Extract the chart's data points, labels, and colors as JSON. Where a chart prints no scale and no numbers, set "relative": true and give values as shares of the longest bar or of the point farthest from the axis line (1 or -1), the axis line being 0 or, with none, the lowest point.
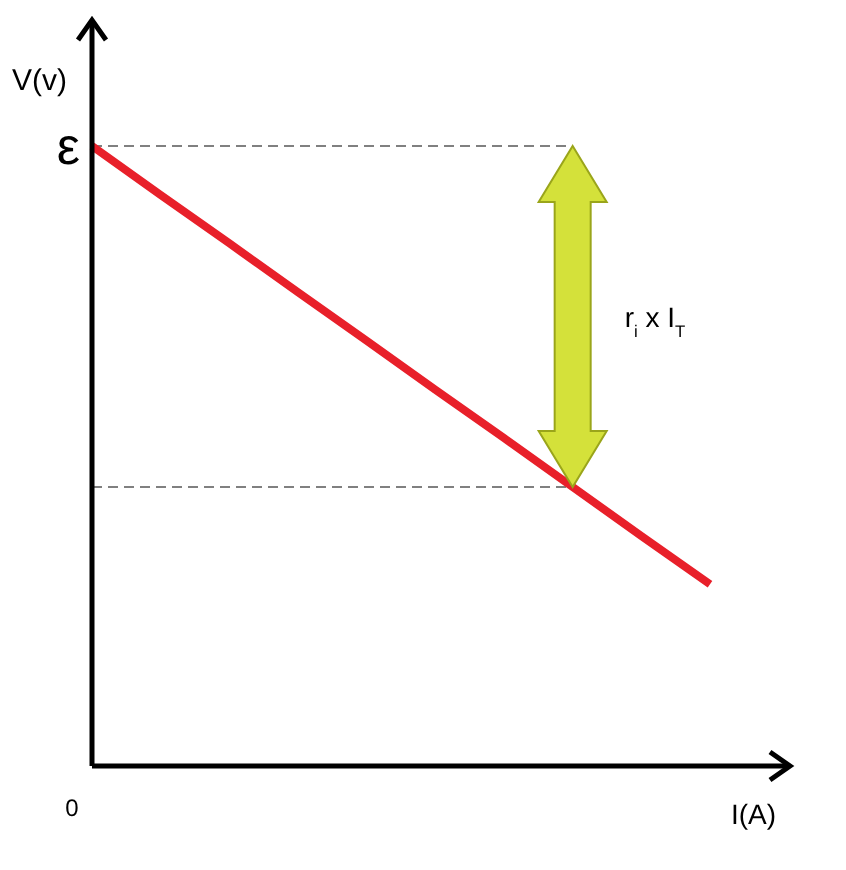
{
  "chart_data": {
    "type": "line",
    "relative": true,
    "xlabel": "I(A)",
    "ylabel": "V(v)",
    "categories": [
      null,
      null,
      null,
      null,
      null,
      null,
      null,
      null,
      null,
      null
    ],
    "series": [
      {
        "color": "#e8202a",
        "values": [
          1,
          0.921,
          0.843,
          0.764,
          0.686,
          0.607,
          0.529,
          0.45,
          0.371,
          0.293
        ]
      }
    ],
    "ref_lines": [
      {
        "axis": "y",
        "value": 1,
        "color": "#808080",
        "line_style": "dashed"
      },
      {
        "axis": "y",
        "value": 0.45,
        "color": "#808080",
        "line_style": "dashed"
      }
    ],
    "annotations": [
      "ε",
      "r$_{i}$ x I$_{T}$",
      "0"
    ],
    "marker": "none",
    "line_style": "solid"
  }
}
